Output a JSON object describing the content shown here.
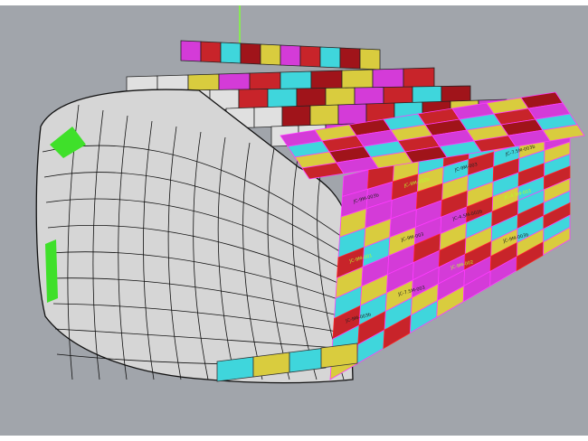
{
  "viewport": {
    "background": "#a1a5ab"
  },
  "colors": {
    "magenta": "#d43bd8",
    "cyan": "#3fd6dc",
    "yellow": "#d9cc3e",
    "red": "#c8242a",
    "darkred": "#a0141a",
    "green": "#3fe02a",
    "hull": "#d8d8d8"
  },
  "panel_labels": [
    "JC-9M-003b",
    "JC-9M-002b",
    "JC-9M-003",
    "JC-7.5M-003b",
    "JC-9M-001",
    "JC-9M-003",
    "JC-4.5M-002b",
    "JC-4.5M-003",
    "JC-9M-003b",
    "JC-7.5M-003",
    "JC-9M-002",
    "JC-9M-003b"
  ]
}
